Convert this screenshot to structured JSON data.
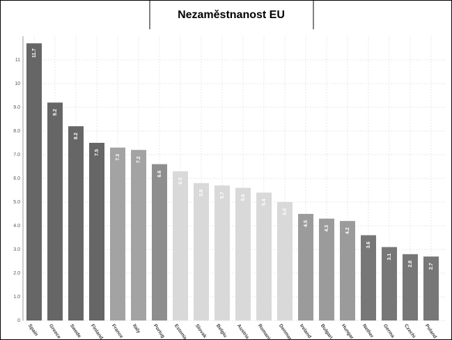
{
  "chart_data": {
    "type": "bar",
    "title": "Nezaměstnanost EU",
    "categories": [
      "Spain",
      "Greece",
      "Swede",
      "Finland",
      "France",
      "Italy",
      "Portug",
      "Estonia",
      "Slovak",
      "Belgiu",
      "Austria",
      "Romani",
      "Denmar",
      "Ireland",
      "Bulgari",
      "Hungar",
      "Nether",
      "Germa",
      "Czechi",
      "Poland"
    ],
    "values": [
      11.7,
      9.2,
      8.2,
      7.5,
      7.3,
      7.2,
      6.6,
      6.3,
      5.8,
      5.7,
      5.6,
      5.4,
      5.0,
      4.5,
      4.3,
      4.2,
      3.6,
      3.1,
      2.8,
      2.7
    ],
    "value_labels": [
      "11.7",
      "9.2",
      "8.2",
      "7.5",
      "7.3",
      "7.2",
      "6.6",
      "6.3",
      "5.8",
      "5.7",
      "5.6",
      "5.4",
      "5.0",
      "4.5",
      "4.3",
      "4.2",
      "3.6",
      "3.1",
      "2.8",
      "2.7"
    ],
    "colors": [
      "#666666",
      "#666666",
      "#666666",
      "#666666",
      "#a3a3a3",
      "#a3a3a3",
      "#8e8e8e",
      "#d9d9d9",
      "#d9d9d9",
      "#d9d9d9",
      "#d9d9d9",
      "#d9d9d9",
      "#d9d9d9",
      "#9b9b9b",
      "#9b9b9b",
      "#9b9b9b",
      "#777777",
      "#777777",
      "#777777",
      "#777777"
    ],
    "ylim": [
      0,
      12
    ],
    "yticks": [
      0,
      {
        "value": 1,
        "label": "1.0"
      },
      {
        "value": 2,
        "label": "2.0"
      },
      {
        "value": 3,
        "label": "3.0"
      },
      {
        "value": 4,
        "label": "4.0"
      },
      {
        "value": 5,
        "label": "5.0"
      },
      {
        "value": 6,
        "label": "6.0"
      },
      {
        "value": 7,
        "label": "7.0"
      },
      {
        "value": 8,
        "label": "8.0"
      },
      {
        "value": 9,
        "label": "9.0"
      },
      10,
      11
    ],
    "grid": true
  }
}
